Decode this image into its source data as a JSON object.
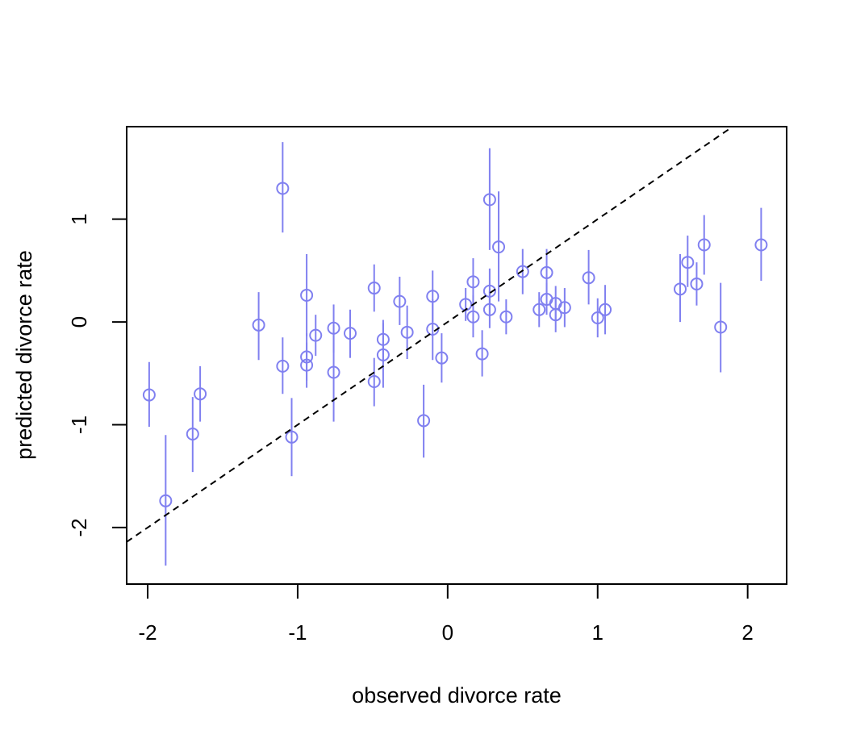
{
  "chart_data": {
    "type": "scatter",
    "title": "",
    "xlabel": "observed divorce rate",
    "ylabel": "predicted divorce rate",
    "xlim": [
      -2.14,
      2.26
    ],
    "ylim": [
      -2.55,
      1.9
    ],
    "x_ticks": [
      -2,
      -1,
      0,
      1,
      2
    ],
    "y_ticks": [
      -2,
      -1,
      0,
      1
    ],
    "x_tick_labels": [
      "-2",
      "-1",
      "0",
      "1",
      "2"
    ],
    "y_tick_labels": [
      "-2",
      "-1",
      "0",
      "1"
    ],
    "grid": false,
    "legend": "none",
    "reference_line": {
      "slope": 1,
      "intercept": 0,
      "style": "dashed",
      "color": "#000000"
    },
    "point_color": "#8080f0",
    "points": [
      {
        "x": -1.99,
        "y": -0.71,
        "lo": -1.02,
        "hi": -0.39
      },
      {
        "x": -1.88,
        "y": -1.74,
        "lo": -2.37,
        "hi": -1.1
      },
      {
        "x": -1.7,
        "y": -1.09,
        "lo": -1.46,
        "hi": -0.73
      },
      {
        "x": -1.65,
        "y": -0.7,
        "lo": -0.97,
        "hi": -0.43
      },
      {
        "x": -1.26,
        "y": -0.03,
        "lo": -0.37,
        "hi": 0.29
      },
      {
        "x": -1.1,
        "y": 1.3,
        "lo": 0.87,
        "hi": 1.75
      },
      {
        "x": -1.1,
        "y": -0.43,
        "lo": -0.7,
        "hi": -0.15
      },
      {
        "x": -1.04,
        "y": -1.12,
        "lo": -1.5,
        "hi": -0.74
      },
      {
        "x": -0.94,
        "y": 0.26,
        "lo": -0.14,
        "hi": 0.66
      },
      {
        "x": -0.94,
        "y": -0.34,
        "lo": -0.57,
        "hi": -0.11
      },
      {
        "x": -0.94,
        "y": -0.42,
        "lo": -0.64,
        "hi": -0.2
      },
      {
        "x": -0.88,
        "y": -0.13,
        "lo": -0.33,
        "hi": 0.07
      },
      {
        "x": -0.76,
        "y": -0.06,
        "lo": -0.3,
        "hi": 0.17
      },
      {
        "x": -0.76,
        "y": -0.49,
        "lo": -0.97,
        "hi": -0.03
      },
      {
        "x": -0.65,
        "y": -0.11,
        "lo": -0.35,
        "hi": 0.12
      },
      {
        "x": -0.49,
        "y": 0.33,
        "lo": 0.1,
        "hi": 0.56
      },
      {
        "x": -0.49,
        "y": -0.58,
        "lo": -0.82,
        "hi": -0.35
      },
      {
        "x": -0.43,
        "y": -0.17,
        "lo": -0.38,
        "hi": 0.02
      },
      {
        "x": -0.43,
        "y": -0.32,
        "lo": -0.64,
        "hi": -0.01
      },
      {
        "x": -0.32,
        "y": 0.2,
        "lo": -0.03,
        "hi": 0.44
      },
      {
        "x": -0.27,
        "y": -0.1,
        "lo": -0.36,
        "hi": 0.16
      },
      {
        "x": -0.16,
        "y": -0.96,
        "lo": -1.32,
        "hi": -0.61
      },
      {
        "x": -0.1,
        "y": 0.25,
        "lo": 0.0,
        "hi": 0.5
      },
      {
        "x": -0.1,
        "y": -0.07,
        "lo": -0.37,
        "hi": 0.22
      },
      {
        "x": -0.04,
        "y": -0.35,
        "lo": -0.59,
        "hi": -0.11
      },
      {
        "x": 0.12,
        "y": 0.17,
        "lo": 0.01,
        "hi": 0.33
      },
      {
        "x": 0.17,
        "y": 0.39,
        "lo": 0.17,
        "hi": 0.62
      },
      {
        "x": 0.17,
        "y": 0.05,
        "lo": -0.15,
        "hi": 0.26
      },
      {
        "x": 0.23,
        "y": -0.31,
        "lo": -0.53,
        "hi": -0.08
      },
      {
        "x": 0.28,
        "y": 1.19,
        "lo": 0.7,
        "hi": 1.69
      },
      {
        "x": 0.28,
        "y": 0.3,
        "lo": 0.08,
        "hi": 0.52
      },
      {
        "x": 0.28,
        "y": 0.12,
        "lo": -0.06,
        "hi": 0.3
      },
      {
        "x": 0.34,
        "y": 0.73,
        "lo": 0.2,
        "hi": 1.27
      },
      {
        "x": 0.39,
        "y": 0.05,
        "lo": -0.12,
        "hi": 0.22
      },
      {
        "x": 0.5,
        "y": 0.49,
        "lo": 0.27,
        "hi": 0.71
      },
      {
        "x": 0.61,
        "y": 0.12,
        "lo": -0.05,
        "hi": 0.29
      },
      {
        "x": 0.66,
        "y": 0.48,
        "lo": 0.25,
        "hi": 0.71
      },
      {
        "x": 0.66,
        "y": 0.22,
        "lo": 0.07,
        "hi": 0.38
      },
      {
        "x": 0.72,
        "y": 0.18,
        "lo": 0.02,
        "hi": 0.35
      },
      {
        "x": 0.72,
        "y": 0.07,
        "lo": -0.1,
        "hi": 0.23
      },
      {
        "x": 0.78,
        "y": 0.14,
        "lo": -0.05,
        "hi": 0.33
      },
      {
        "x": 0.94,
        "y": 0.43,
        "lo": 0.17,
        "hi": 0.7
      },
      {
        "x": 1.0,
        "y": 0.04,
        "lo": -0.15,
        "hi": 0.23
      },
      {
        "x": 1.05,
        "y": 0.12,
        "lo": -0.12,
        "hi": 0.36
      },
      {
        "x": 1.55,
        "y": 0.32,
        "lo": 0.0,
        "hi": 0.66
      },
      {
        "x": 1.6,
        "y": 0.58,
        "lo": 0.34,
        "hi": 0.84
      },
      {
        "x": 1.66,
        "y": 0.37,
        "lo": 0.16,
        "hi": 0.58
      },
      {
        "x": 1.71,
        "y": 0.75,
        "lo": 0.46,
        "hi": 1.04
      },
      {
        "x": 1.82,
        "y": -0.05,
        "lo": -0.49,
        "hi": 0.38
      },
      {
        "x": 2.09,
        "y": 0.75,
        "lo": 0.4,
        "hi": 1.11
      }
    ]
  }
}
